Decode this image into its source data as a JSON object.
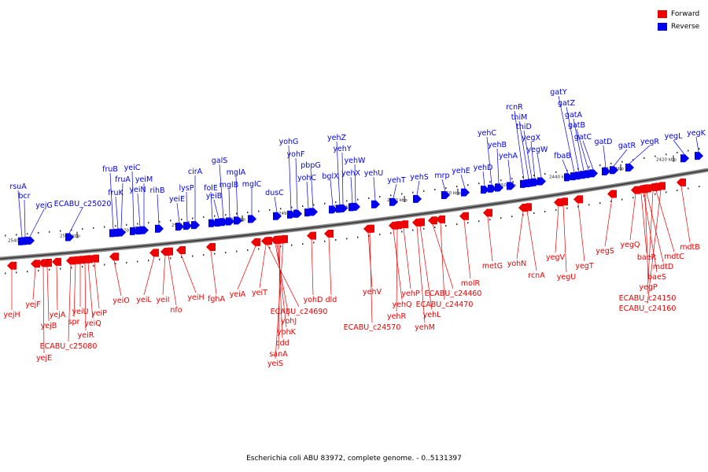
{
  "legend": {
    "forward_label": "Forward",
    "reverse_label": "Reverse",
    "forward_color": "#ee0000",
    "reverse_color": "#0000ee"
  },
  "caption": "Escherichia coli ABU 83972, complete genome. - 0..5131397",
  "ticks": [
    "2540 kbp",
    "2530 kbp",
    "2520 kbp",
    "2510 kbp",
    "2500 kbp",
    "2490 kbp",
    "2480 kbp",
    "2470 kbp",
    "2460 kbp",
    "2450 kbp",
    "2440 kbp",
    "2430 kbp",
    "2420 kbp"
  ],
  "reverse_genes": [
    "rsuA",
    "bcr",
    "yejG",
    "ECABU_c25020",
    "fruB",
    "fruA",
    "fruK",
    "yeiC",
    "yeiM",
    "yeiN",
    "rihB",
    "yeiE",
    "lysP",
    "cirA",
    "folE",
    "yeiB",
    "galS",
    "mglB",
    "mglA",
    "mglC",
    "dusC",
    "yohG",
    "yohF",
    "yohC",
    "pbpG",
    "bglX",
    "yehZ",
    "yehY",
    "yehX",
    "yehW",
    "yehU",
    "yehT",
    "yehS",
    "mrp",
    "yehE",
    "yehD",
    "yehC",
    "yehB",
    "yehA",
    "rcnR",
    "thiM",
    "thiD",
    "yegX",
    "yegW",
    "fbaB",
    "gatY",
    "gatZ",
    "gatA",
    "gatB",
    "gatC",
    "gatD",
    "gatR",
    "yegR",
    "yegL",
    "yegK"
  ],
  "forward_genes": [
    "yejH",
    "yejF",
    "yejB",
    "yejA",
    "yeiU",
    "spr",
    "yeiP",
    "yeiQ",
    "yeiR",
    "ECABU_c25080",
    "yejE",
    "yeiO",
    "yeiL",
    "yeiI",
    "nfo",
    "yeiH",
    "fghA",
    "yeiA",
    "yeiT",
    "ECABU_c24690",
    "yohJ",
    "yohK",
    "cdd",
    "sanA",
    "yeiS",
    "yohD",
    "dld",
    "yehV",
    "ECABU_c24570",
    "yehQ",
    "yehR",
    "yehP",
    "yehL",
    "yehM",
    "ECABU_c24460",
    "ECABU_c24470",
    "molR",
    "metG",
    "yohN",
    "rcnA",
    "yegV",
    "yegU",
    "yegT",
    "yegS",
    "yegQ",
    "yegP",
    "baeR",
    "baeS",
    "mdtD",
    "mdtC",
    "mdtB",
    "ECABU_c24150",
    "ECABU_c24160"
  ]
}
